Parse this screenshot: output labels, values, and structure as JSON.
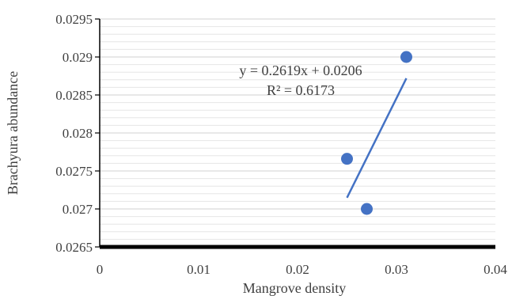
{
  "chart_data": {
    "type": "scatter",
    "title": "",
    "xlabel": "Mangrove density",
    "ylabel": "Brachyura abundance",
    "xlim": [
      0,
      0.04
    ],
    "ylim": [
      0.0265,
      0.0295
    ],
    "x_ticks": [
      "0",
      "0.01",
      "0.02",
      "0.03",
      "0.04"
    ],
    "y_ticks": [
      "0.0265",
      "0.027",
      "0.0275",
      "0.028",
      "0.0285",
      "0.029",
      "0.0295"
    ],
    "points": [
      {
        "x": 0.025,
        "y": 0.02766
      },
      {
        "x": 0.027,
        "y": 0.027
      },
      {
        "x": 0.031,
        "y": 0.029
      }
    ],
    "trendline": {
      "type": "linear",
      "slope": 0.2619,
      "intercept": 0.0206,
      "x_range": [
        0.025,
        0.031
      ],
      "equation_label": "y = 0.2619x + 0.0206",
      "r2_label": "R² = 0.6173"
    },
    "grid": true,
    "legend": "none",
    "colors": {
      "marker": "#4472c4",
      "trendline": "#4472c4",
      "gridline": "#e6e6e6",
      "axis": "#000000",
      "text": "#404040"
    }
  }
}
